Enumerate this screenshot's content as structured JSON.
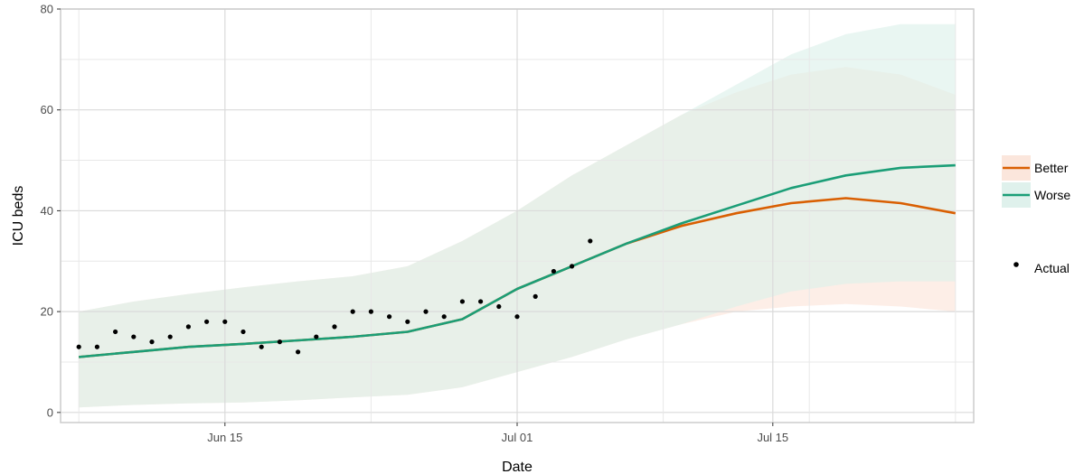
{
  "chart_data": {
    "type": "line",
    "xlabel": "Date",
    "ylabel": "ICU beds",
    "x_type": "date",
    "xlim": [
      "2020-06-06",
      "2020-07-26"
    ],
    "ylim": [
      -2,
      80
    ],
    "x_ticks": [
      {
        "date": "2020-06-15",
        "label": "Jun 15"
      },
      {
        "date": "2020-07-01",
        "label": "Jul 01"
      },
      {
        "date": "2020-07-15",
        "label": "Jul 15"
      }
    ],
    "y_ticks": [
      {
        "value": 0,
        "label": "0"
      },
      {
        "value": 20,
        "label": "20"
      },
      {
        "value": 40,
        "label": "40"
      },
      {
        "value": 60,
        "label": "60"
      },
      {
        "value": 80,
        "label": "80"
      }
    ],
    "grid": true,
    "legend_position": "right",
    "series": [
      {
        "name": "Better",
        "color": "#d95f02",
        "band_color": "#fbe3d8",
        "x": [
          "2020-06-07",
          "2020-06-10",
          "2020-06-13",
          "2020-06-16",
          "2020-06-19",
          "2020-06-22",
          "2020-06-25",
          "2020-06-28",
          "2020-07-01",
          "2020-07-04",
          "2020-07-07",
          "2020-07-10",
          "2020-07-13",
          "2020-07-16",
          "2020-07-19",
          "2020-07-22",
          "2020-07-25"
        ],
        "y": [
          11,
          12,
          13,
          13.6,
          14.3,
          15,
          16,
          18.5,
          24.5,
          29,
          33.5,
          37,
          39.5,
          41.5,
          42.5,
          41.5,
          39.5
        ],
        "lower": [
          1,
          1.5,
          1.8,
          2,
          2.4,
          3,
          3.5,
          5,
          8,
          11,
          14.5,
          17.5,
          20,
          21,
          21.5,
          21,
          20
        ],
        "upper": [
          20,
          22,
          23.5,
          24.8,
          26,
          27,
          29,
          34,
          40,
          47,
          53,
          59,
          63.5,
          67,
          68.5,
          67,
          63
        ]
      },
      {
        "name": "Worse",
        "color": "#1b9e77",
        "band_color": "#dbf0ea",
        "x": [
          "2020-06-07",
          "2020-06-10",
          "2020-06-13",
          "2020-06-16",
          "2020-06-19",
          "2020-06-22",
          "2020-06-25",
          "2020-06-28",
          "2020-07-01",
          "2020-07-04",
          "2020-07-07",
          "2020-07-10",
          "2020-07-13",
          "2020-07-16",
          "2020-07-19",
          "2020-07-22",
          "2020-07-25"
        ],
        "y": [
          11,
          12,
          13,
          13.6,
          14.3,
          15,
          16,
          18.5,
          24.5,
          29,
          33.5,
          37.5,
          41,
          44.5,
          47,
          48.5,
          49
        ],
        "lower": [
          1,
          1.5,
          1.8,
          2,
          2.4,
          3,
          3.5,
          5,
          8,
          11,
          14.5,
          17.5,
          21,
          24,
          25.5,
          26,
          26
        ],
        "upper": [
          20,
          22,
          23.5,
          24.8,
          26,
          27,
          29,
          34,
          40,
          47,
          53,
          59,
          65,
          71,
          75,
          77,
          77
        ]
      },
      {
        "name": "Actual",
        "type": "scatter",
        "color": "#000000",
        "x": [
          "2020-06-07",
          "2020-06-08",
          "2020-06-09",
          "2020-06-10",
          "2020-06-11",
          "2020-06-12",
          "2020-06-13",
          "2020-06-14",
          "2020-06-15",
          "2020-06-16",
          "2020-06-17",
          "2020-06-18",
          "2020-06-19",
          "2020-06-20",
          "2020-06-21",
          "2020-06-22",
          "2020-06-23",
          "2020-06-24",
          "2020-06-25",
          "2020-06-26",
          "2020-06-27",
          "2020-06-28",
          "2020-06-29",
          "2020-06-30",
          "2020-07-01",
          "2020-07-02",
          "2020-07-03",
          "2020-07-04",
          "2020-07-05"
        ],
        "y": [
          13,
          13,
          16,
          15,
          14,
          15,
          17,
          18,
          18,
          16,
          13,
          14,
          12,
          15,
          17,
          20,
          20,
          19,
          18,
          20,
          19,
          22,
          22,
          21,
          19,
          23,
          28,
          29,
          34
        ]
      }
    ]
  }
}
